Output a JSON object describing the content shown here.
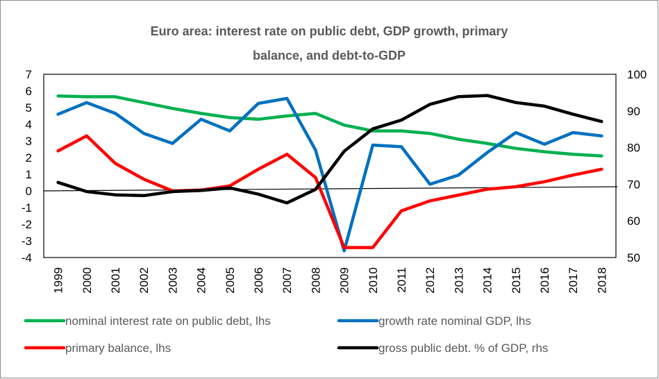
{
  "chart_data": {
    "type": "line",
    "title_line1": "Euro area: interest rate on public debt, GDP growth, primary",
    "title_line2": "balance, and debt-to-GDP",
    "categories": [
      "1999",
      "2000",
      "2001",
      "2002",
      "2003",
      "2004",
      "2005",
      "2006",
      "2007",
      "2008",
      "2009",
      "2010",
      "2011",
      "2012",
      "2013",
      "2014",
      "2015",
      "2016",
      "2017",
      "2018"
    ],
    "y_left": {
      "min": -4,
      "max": 7,
      "ticks": [
        -4,
        -3,
        -2,
        -1,
        0,
        1,
        2,
        3,
        4,
        5,
        6,
        7
      ]
    },
    "y_right": {
      "min": 50,
      "max": 100,
      "ticks": [
        50,
        60,
        70,
        80,
        90,
        100
      ]
    },
    "grid": false,
    "legend_position": "bottom",
    "series": [
      {
        "name": "nominal interest rate on public debt, lhs",
        "axis": "left",
        "color": "#00b050",
        "values": [
          5.7,
          5.65,
          5.65,
          5.3,
          4.95,
          4.65,
          4.4,
          4.3,
          4.5,
          4.65,
          3.95,
          3.6,
          3.6,
          3.45,
          3.1,
          2.85,
          2.55,
          2.35,
          2.2,
          2.1
        ]
      },
      {
        "name": "growth rate nominal GDP, lhs",
        "axis": "left",
        "color": "#0070c0",
        "values": [
          4.6,
          5.3,
          4.65,
          3.45,
          2.85,
          4.3,
          3.6,
          5.25,
          5.55,
          2.45,
          -3.6,
          2.75,
          2.65,
          0.4,
          0.95,
          2.3,
          3.5,
          2.8,
          3.5,
          3.3
        ]
      },
      {
        "name": "primary balance, lhs",
        "axis": "left",
        "color": "#ff0000",
        "values": [
          2.4,
          3.3,
          1.65,
          0.7,
          0.0,
          0.05,
          0.3,
          1.3,
          2.2,
          0.8,
          -3.4,
          -3.4,
          -1.2,
          -0.6,
          -0.25,
          0.1,
          0.25,
          0.55,
          0.95,
          1.3
        ]
      },
      {
        "name": "gross public debt. % of GDP, rhs",
        "axis": "right",
        "color": "#000000",
        "values": [
          70.5,
          68.0,
          67.1,
          66.9,
          68.0,
          68.3,
          69.0,
          67.3,
          64.9,
          68.6,
          79.0,
          85.1,
          87.5,
          91.8,
          93.9,
          94.2,
          92.3,
          91.3,
          89.1,
          87.1
        ]
      }
    ]
  },
  "colors": {
    "frame_border": "#8c8c8c",
    "title": "#595959",
    "zero_line": "#000000"
  }
}
